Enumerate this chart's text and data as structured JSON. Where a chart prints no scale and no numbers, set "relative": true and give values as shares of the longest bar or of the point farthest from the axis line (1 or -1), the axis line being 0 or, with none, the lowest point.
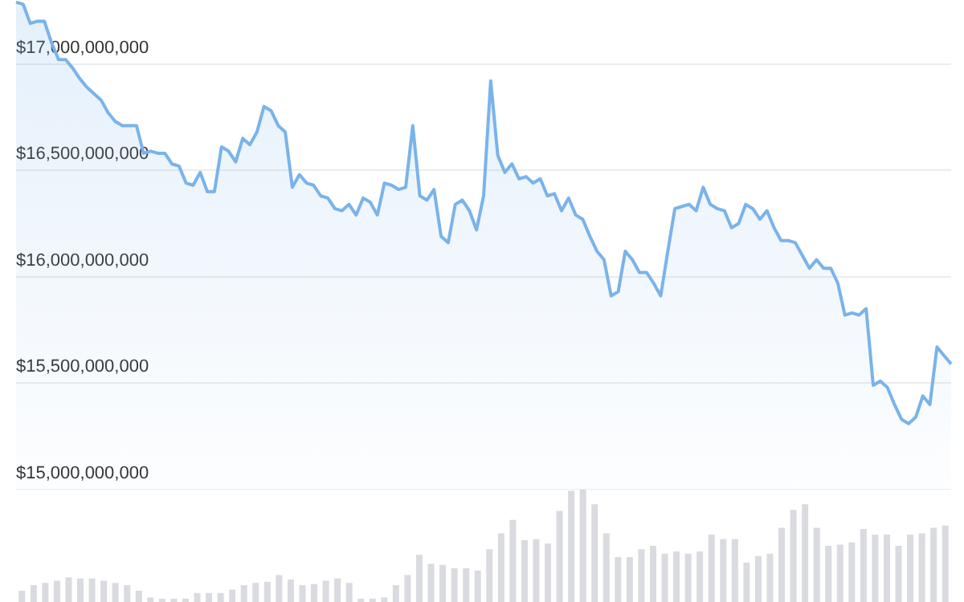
{
  "chart_data": [
    {
      "type": "area",
      "categories": [
        null,
        null,
        null,
        null,
        null,
        null,
        null,
        null,
        null,
        null,
        null,
        null,
        null,
        null,
        null,
        null,
        null,
        null,
        null,
        null,
        null,
        null,
        null,
        null,
        null,
        null,
        null,
        null,
        null,
        null,
        null,
        null,
        null,
        null,
        null,
        null,
        null,
        null,
        null,
        null,
        null,
        null,
        null,
        null,
        null,
        null,
        null,
        null,
        null,
        null,
        null,
        null,
        null,
        null,
        null,
        null,
        null,
        null,
        null,
        null,
        null,
        null,
        null,
        null,
        null,
        null,
        null,
        null,
        null,
        null,
        null,
        null,
        null,
        null,
        null,
        null,
        null,
        null,
        null,
        null,
        null,
        null,
        null,
        null,
        null,
        null,
        null,
        null,
        null,
        null,
        null,
        null,
        null,
        null,
        null,
        null,
        null,
        null,
        null,
        null,
        null,
        null,
        null,
        null,
        null,
        null,
        null,
        null,
        null,
        null,
        null,
        null,
        null,
        null,
        null,
        null,
        null,
        null,
        null,
        null,
        null,
        null,
        null,
        null,
        null,
        null,
        null,
        null,
        null,
        null,
        null,
        null,
        null
      ],
      "series": [
        {
          "color": "#7ab3ea",
          "values": [
            17290000000,
            17280000000,
            17190000000,
            17200000000,
            17200000000,
            17100000000,
            17020000000,
            17020000000,
            16980000000,
            16930000000,
            16890000000,
            16860000000,
            16830000000,
            16770000000,
            16730000000,
            16710000000,
            16710000000,
            16710000000,
            16580000000,
            16590000000,
            16580000000,
            16580000000,
            16530000000,
            16520000000,
            16440000000,
            16430000000,
            16490000000,
            16400000000,
            16400000000,
            16610000000,
            16590000000,
            16540000000,
            16650000000,
            16620000000,
            16680000000,
            16800000000,
            16780000000,
            16710000000,
            16680000000,
            16420000000,
            16480000000,
            16440000000,
            16430000000,
            16380000000,
            16370000000,
            16320000000,
            16310000000,
            16340000000,
            16290000000,
            16370000000,
            16350000000,
            16290000000,
            16440000000,
            16430000000,
            16410000000,
            16420000000,
            16710000000,
            16380000000,
            16360000000,
            16410000000,
            16190000000,
            16160000000,
            16340000000,
            16360000000,
            16310000000,
            16220000000,
            16380000000,
            16920000000,
            16570000000,
            16490000000,
            16530000000,
            16460000000,
            16470000000,
            16440000000,
            16460000000,
            16380000000,
            16390000000,
            16310000000,
            16370000000,
            16290000000,
            16270000000,
            16190000000,
            16120000000,
            16080000000,
            15910000000,
            15930000000,
            16120000000,
            16080000000,
            16020000000,
            16020000000,
            15970000000,
            15910000000,
            16120000000,
            16320000000,
            16330000000,
            16340000000,
            16310000000,
            16420000000,
            16340000000,
            16320000000,
            16310000000,
            16230000000,
            16250000000,
            16340000000,
            16320000000,
            16270000000,
            16310000000,
            16230000000,
            16170000000,
            16170000000,
            16160000000,
            16100000000,
            16040000000,
            16080000000,
            16040000000,
            16040000000,
            15970000000,
            15820000000,
            15830000000,
            15820000000,
            15850000000,
            15490000000,
            15510000000,
            15480000000,
            15400000000,
            15330000000,
            15310000000,
            15340000000,
            15440000000,
            15400000000,
            15670000000,
            15630000000,
            15590000000
          ]
        }
      ],
      "ylim": [
        15000000000,
        17300000000
      ],
      "yticks": [
        {
          "value": 15000000000,
          "label": "$15,000,000,000"
        },
        {
          "value": 15500000000,
          "label": "$15,500,000,000"
        },
        {
          "value": 16000000000,
          "label": "$16,000,000,000"
        },
        {
          "value": 16500000000,
          "label": "$16,500,000,000"
        },
        {
          "value": 17000000000,
          "label": "$17,000,000,000"
        }
      ],
      "grid": "y",
      "tick_labels": "y",
      "legend": false,
      "marker": "none",
      "line_style": "solid"
    },
    {
      "type": "bar",
      "relative": true,
      "categories": [
        null,
        null,
        null,
        null,
        null,
        null,
        null,
        null,
        null,
        null,
        null,
        null,
        null,
        null,
        null,
        null,
        null,
        null,
        null,
        null,
        null,
        null,
        null,
        null,
        null,
        null,
        null,
        null,
        null,
        null,
        null,
        null,
        null,
        null,
        null,
        null,
        null,
        null,
        null,
        null,
        null,
        null,
        null,
        null,
        null,
        null,
        null,
        null,
        null,
        null,
        null,
        null,
        null,
        null,
        null,
        null,
        null,
        null,
        null,
        null,
        null,
        null,
        null,
        null,
        null,
        null,
        null,
        null,
        null,
        null,
        null,
        null,
        null,
        null,
        null,
        null,
        null,
        null,
        null,
        null
      ],
      "series": [
        {
          "color": "#d9dbe0",
          "values": [
            0.1,
            0.15,
            0.17,
            0.19,
            0.22,
            0.21,
            0.21,
            0.19,
            0.17,
            0.15,
            0.1,
            0.04,
            0.03,
            0.03,
            0.03,
            0.08,
            0.08,
            0.08,
            0.11,
            0.15,
            0.17,
            0.18,
            0.24,
            0.2,
            0.15,
            0.16,
            0.19,
            0.21,
            0.17,
            0.03,
            0.03,
            0.04,
            0.15,
            0.24,
            0.42,
            0.34,
            0.33,
            0.3,
            0.3,
            0.28,
            0.47,
            0.61,
            0.73,
            0.55,
            0.56,
            0.52,
            0.81,
            0.99,
            1,
            0.87,
            0.61,
            0.4,
            0.4,
            0.47,
            0.5,
            0.43,
            0.45,
            0.43,
            0.45,
            0.6,
            0.56,
            0.56,
            0.35,
            0.41,
            0.43,
            0.66,
            0.82,
            0.87,
            0.66,
            0.5,
            0.51,
            0.53,
            0.65,
            0.6,
            0.6,
            0.5,
            0.6,
            0.61,
            0.66,
            0.68
          ]
        }
      ],
      "grid": false,
      "tick_labels": false,
      "legend": false
    }
  ]
}
